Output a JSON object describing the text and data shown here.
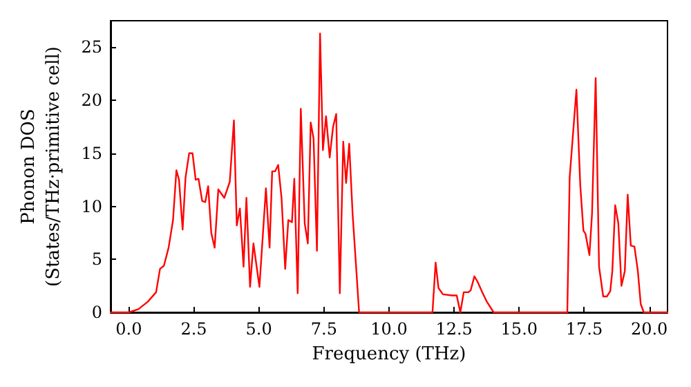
{
  "chart_data": {
    "type": "line",
    "xlabel": "Frequency (THz)",
    "ylabel": "Phonon DOS\n(States/THz·primitive cell)",
    "xlim": [
      -0.7,
      20.7
    ],
    "ylim": [
      0,
      27.5
    ],
    "xticks": [
      {
        "value": 0,
        "label": "0.0"
      },
      {
        "value": 2.5,
        "label": "2.5"
      },
      {
        "value": 5,
        "label": "5.0"
      },
      {
        "value": 7.5,
        "label": "7.5"
      },
      {
        "value": 10,
        "label": "10.0"
      },
      {
        "value": 12.5,
        "label": "12.5"
      },
      {
        "value": 15,
        "label": "15.0"
      },
      {
        "value": 17.5,
        "label": "17.5"
      },
      {
        "value": 20,
        "label": "20.0"
      }
    ],
    "yticks": [
      0,
      5,
      10,
      15,
      20,
      25
    ],
    "grid": false,
    "marker": "none",
    "line_style": "solid",
    "series": [
      {
        "color": "#ff0000",
        "x": [
          -0.7,
          0,
          0.37,
          0.73,
          1.05,
          1.2,
          1.35,
          1.53,
          1.7,
          1.83,
          1.93,
          2.07,
          2.18,
          2.32,
          2.45,
          2.57,
          2.68,
          2.82,
          2.94,
          3.05,
          3.17,
          3.3,
          3.44,
          3.67,
          3.88,
          4.04,
          4.15,
          4.27,
          4.41,
          4.52,
          4.66,
          4.79,
          5.02,
          5.27,
          5.41,
          5.51,
          5.62,
          5.74,
          5.87,
          6.01,
          6.13,
          6.27,
          6.36,
          6.49,
          6.61,
          6.76,
          6.88,
          6.99,
          7.1,
          7.23,
          7.35,
          7.46,
          7.58,
          7.72,
          7.85,
          7.97,
          8.11,
          8.24,
          8.35,
          8.47,
          8.6,
          8.7,
          8.85,
          11.67,
          11.79,
          11.9,
          12.07,
          12.42,
          12.6,
          12.74,
          12.87,
          13.05,
          13.14,
          13.28,
          13.4,
          13.58,
          13.76,
          14.02,
          16.85,
          16.94,
          17.2,
          17.35,
          17.47,
          17.55,
          17.7,
          17.8,
          17.94,
          18.07,
          18.23,
          18.37,
          18.5,
          18.58,
          18.69,
          18.81,
          18.93,
          19.06,
          19.17,
          19.29,
          19.43,
          19.56,
          19.67,
          19.79,
          20.7
        ],
        "values": [
          0,
          0,
          0.3,
          1.0,
          1.9,
          4.1,
          4.4,
          6.1,
          8.7,
          13.4,
          12.5,
          7.8,
          12.7,
          15.0,
          15.0,
          12.5,
          12.6,
          10.5,
          10.4,
          11.9,
          7.5,
          6.1,
          11.6,
          10.8,
          12.3,
          18.1,
          8.2,
          9.8,
          4.3,
          10.8,
          2.4,
          6.5,
          2.4,
          11.7,
          6.1,
          13.3,
          13.3,
          13.9,
          10.8,
          4.1,
          8.7,
          8.5,
          12.6,
          1.8,
          19.2,
          8.4,
          6.5,
          17.9,
          16.4,
          5.8,
          26.3,
          15.3,
          18.5,
          14.6,
          17.5,
          18.7,
          1.8,
          16.1,
          12.2,
          15.9,
          9.3,
          5.6,
          0,
          0,
          4.7,
          2.3,
          1.7,
          1.6,
          1.6,
          0,
          1.9,
          1.9,
          2.1,
          3.4,
          2.9,
          1.9,
          1.0,
          0,
          0,
          12.7,
          21.0,
          11.9,
          7.7,
          7.4,
          5.4,
          9.3,
          22.1,
          4.3,
          1.5,
          1.5,
          2.0,
          3.9,
          10.1,
          8.4,
          2.5,
          3.9,
          11.1,
          6.3,
          6.2,
          3.9,
          0.8,
          0,
          0
        ]
      }
    ]
  }
}
